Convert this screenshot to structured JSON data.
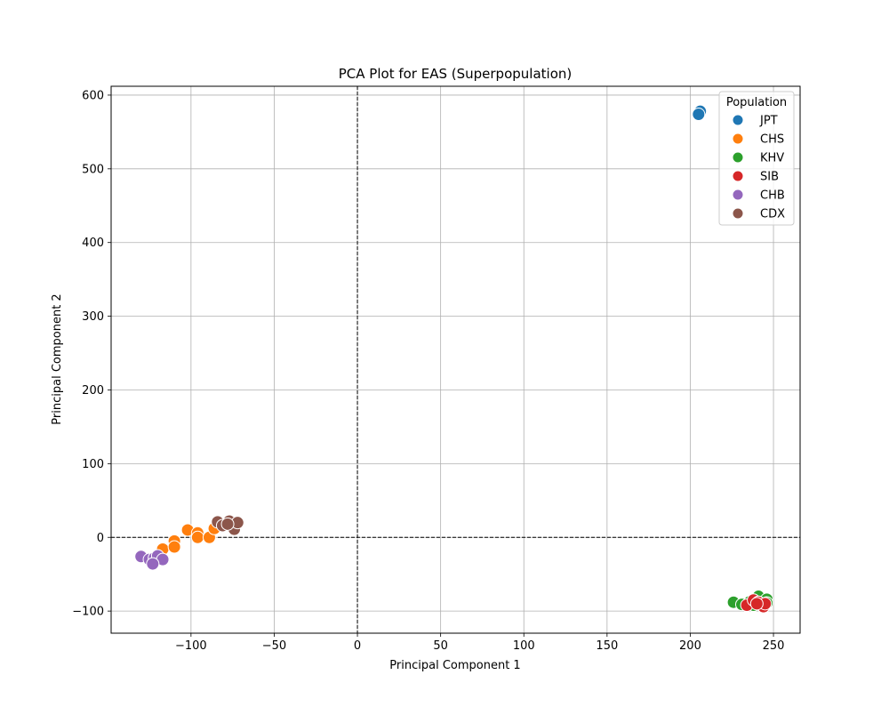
{
  "chart_data": {
    "type": "scatter",
    "title": "PCA Plot for EAS (Superpopulation)",
    "xlabel": "Principal Component 1",
    "ylabel": "Principal Component 2",
    "xlim": [
      -148,
      266
    ],
    "ylim": [
      -130,
      612
    ],
    "xticks": [
      -100,
      -50,
      0,
      50,
      100,
      150,
      200,
      250
    ],
    "yticks": [
      -100,
      0,
      100,
      200,
      300,
      400,
      500,
      600
    ],
    "grid": true,
    "reference_lines": {
      "x": 0,
      "y": 0,
      "style": "dashed"
    },
    "legend": {
      "title": "Population",
      "position": "top-right"
    },
    "series": [
      {
        "name": "JPT",
        "color": "#1f77b4",
        "points": [
          [
            205,
            575
          ],
          [
            206,
            578
          ],
          [
            205,
            574
          ]
        ]
      },
      {
        "name": "CHS",
        "color": "#ff7f0e",
        "points": [
          [
            -117,
            -16
          ],
          [
            -110,
            -5
          ],
          [
            -110,
            -13
          ],
          [
            -102,
            10
          ],
          [
            -96,
            6
          ],
          [
            -96,
            0
          ],
          [
            -89,
            0
          ],
          [
            -86,
            12
          ]
        ]
      },
      {
        "name": "KHV",
        "color": "#2ca02c",
        "points": [
          [
            226,
            -88
          ],
          [
            231,
            -91
          ],
          [
            236,
            -87
          ],
          [
            241,
            -80
          ],
          [
            246,
            -84
          ],
          [
            246,
            -89
          ],
          [
            243,
            -92
          ],
          [
            238,
            -92
          ]
        ]
      },
      {
        "name": "SIB",
        "color": "#d62728",
        "points": [
          [
            234,
            -92
          ],
          [
            238,
            -85
          ],
          [
            241,
            -88
          ],
          [
            244,
            -94
          ],
          [
            245,
            -90
          ],
          [
            240,
            -90
          ]
        ]
      },
      {
        "name": "CHB",
        "color": "#9467bd",
        "points": [
          [
            -130,
            -26
          ],
          [
            -125,
            -30
          ],
          [
            -122,
            -28
          ],
          [
            -120,
            -25
          ],
          [
            -117,
            -30
          ],
          [
            -123,
            -36
          ]
        ]
      },
      {
        "name": "CDX",
        "color": "#8c564b",
        "points": [
          [
            -84,
            21
          ],
          [
            -81,
            16
          ],
          [
            -77,
            22
          ],
          [
            -74,
            11
          ],
          [
            -72,
            20
          ],
          [
            -78,
            18
          ]
        ]
      }
    ]
  }
}
